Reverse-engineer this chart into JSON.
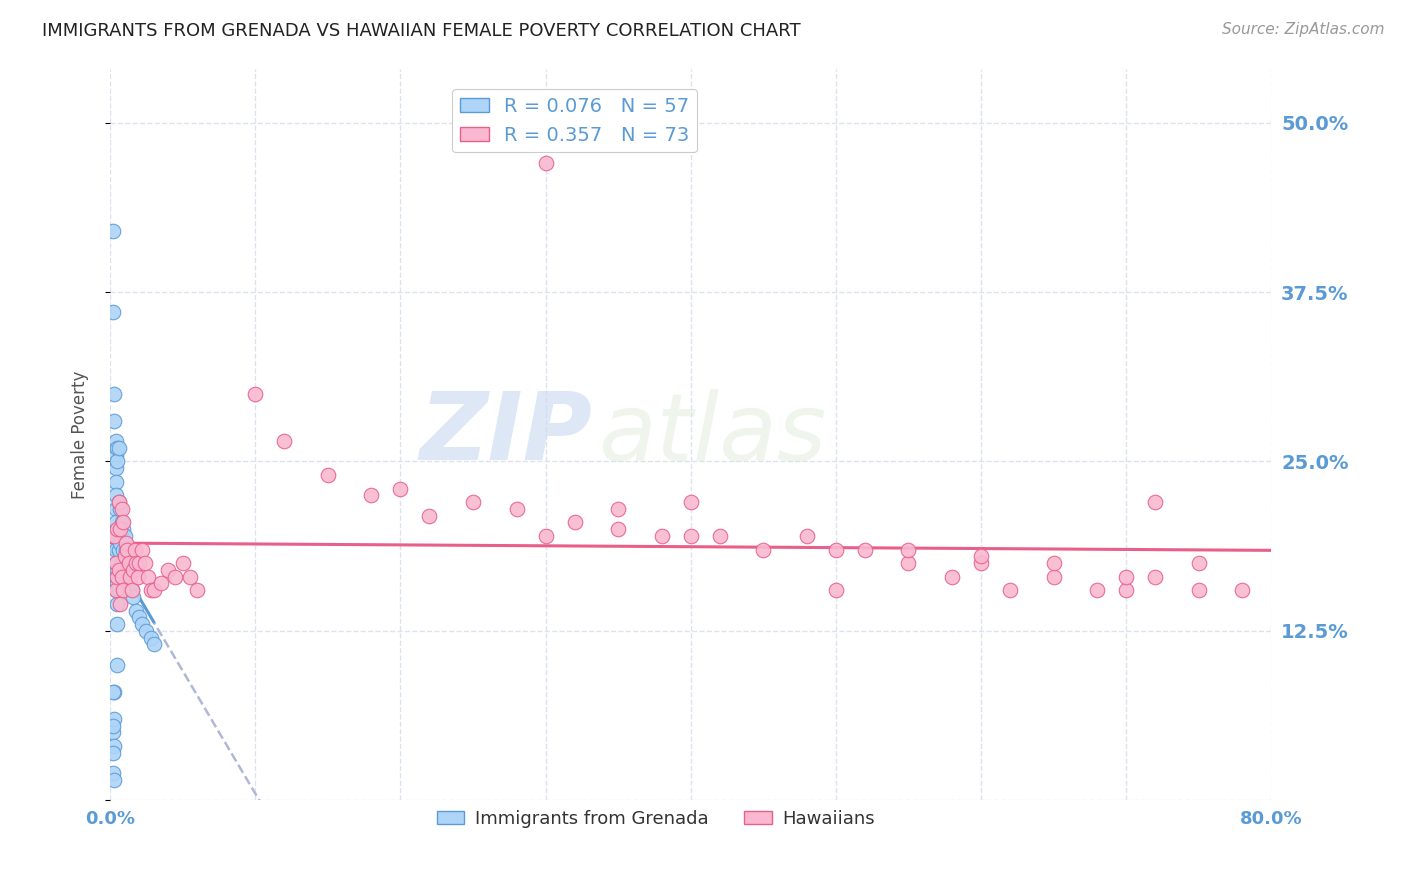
{
  "title": "IMMIGRANTS FROM GRENADA VS HAWAIIAN FEMALE POVERTY CORRELATION CHART",
  "source": "Source: ZipAtlas.com",
  "ylabel": "Female Poverty",
  "yticks": [
    0.0,
    0.125,
    0.25,
    0.375,
    0.5
  ],
  "ytick_labels": [
    "",
    "12.5%",
    "25.0%",
    "37.5%",
    "50.0%"
  ],
  "xlim": [
    0.0,
    0.8
  ],
  "ylim": [
    0.0,
    0.54
  ],
  "watermark_zip": "ZIP",
  "watermark_atlas": "atlas",
  "legend_series1_label": "R = 0.076   N = 57",
  "legend_series2_label": "R = 0.357   N = 73",
  "series1_face_color": "#aed4f7",
  "series2_face_color": "#f9b8d0",
  "series1_edge_color": "#5b9bd5",
  "series2_edge_color": "#e8608a",
  "series1_trend_solid_color": "#5b9bd5",
  "series2_trend_solid_color": "#e8608a",
  "series1_trend_dash_color": "#b0b8d8",
  "background_color": "#ffffff",
  "grid_color": "#dde3ee",
  "title_color": "#222222",
  "tick_label_color": "#5b9bd5",
  "series1_x": [
    0.002,
    0.002,
    0.002,
    0.002,
    0.003,
    0.003,
    0.003,
    0.003,
    0.003,
    0.004,
    0.004,
    0.004,
    0.004,
    0.004,
    0.004,
    0.004,
    0.004,
    0.004,
    0.004,
    0.004,
    0.004,
    0.005,
    0.005,
    0.005,
    0.005,
    0.005,
    0.005,
    0.005,
    0.006,
    0.006,
    0.006,
    0.006,
    0.007,
    0.007,
    0.008,
    0.008,
    0.009,
    0.009,
    0.009,
    0.01,
    0.01,
    0.011,
    0.012,
    0.013,
    0.014,
    0.015,
    0.016,
    0.018,
    0.02,
    0.022,
    0.025,
    0.028,
    0.03,
    0.002,
    0.002,
    0.002,
    0.003
  ],
  "series1_y": [
    0.42,
    0.36,
    0.05,
    0.02,
    0.3,
    0.28,
    0.08,
    0.06,
    0.04,
    0.265,
    0.255,
    0.245,
    0.235,
    0.225,
    0.215,
    0.205,
    0.195,
    0.185,
    0.175,
    0.165,
    0.155,
    0.26,
    0.25,
    0.17,
    0.16,
    0.145,
    0.13,
    0.1,
    0.26,
    0.22,
    0.185,
    0.155,
    0.215,
    0.19,
    0.205,
    0.175,
    0.2,
    0.185,
    0.165,
    0.195,
    0.17,
    0.185,
    0.175,
    0.165,
    0.16,
    0.155,
    0.15,
    0.14,
    0.135,
    0.13,
    0.125,
    0.12,
    0.115,
    0.08,
    0.055,
    0.035,
    0.015
  ],
  "series2_x": [
    0.003,
    0.004,
    0.004,
    0.005,
    0.005,
    0.006,
    0.006,
    0.007,
    0.007,
    0.008,
    0.008,
    0.009,
    0.009,
    0.01,
    0.011,
    0.012,
    0.013,
    0.014,
    0.015,
    0.016,
    0.017,
    0.018,
    0.019,
    0.02,
    0.022,
    0.024,
    0.026,
    0.028,
    0.03,
    0.035,
    0.04,
    0.045,
    0.05,
    0.055,
    0.06,
    0.1,
    0.12,
    0.15,
    0.18,
    0.2,
    0.22,
    0.25,
    0.28,
    0.3,
    0.32,
    0.35,
    0.38,
    0.4,
    0.42,
    0.45,
    0.48,
    0.5,
    0.52,
    0.55,
    0.58,
    0.6,
    0.62,
    0.65,
    0.68,
    0.7,
    0.72,
    0.75,
    0.78,
    0.3,
    0.35,
    0.4,
    0.5,
    0.55,
    0.6,
    0.65,
    0.7,
    0.72,
    0.75
  ],
  "series2_y": [
    0.195,
    0.175,
    0.155,
    0.2,
    0.165,
    0.22,
    0.17,
    0.2,
    0.145,
    0.215,
    0.165,
    0.205,
    0.155,
    0.18,
    0.19,
    0.185,
    0.175,
    0.165,
    0.155,
    0.17,
    0.185,
    0.175,
    0.165,
    0.175,
    0.185,
    0.175,
    0.165,
    0.155,
    0.155,
    0.16,
    0.17,
    0.165,
    0.175,
    0.165,
    0.155,
    0.3,
    0.265,
    0.24,
    0.225,
    0.23,
    0.21,
    0.22,
    0.215,
    0.195,
    0.205,
    0.2,
    0.195,
    0.22,
    0.195,
    0.185,
    0.195,
    0.185,
    0.185,
    0.175,
    0.165,
    0.175,
    0.155,
    0.165,
    0.155,
    0.155,
    0.165,
    0.155,
    0.155,
    0.47,
    0.215,
    0.195,
    0.155,
    0.185,
    0.18,
    0.175,
    0.165,
    0.22,
    0.175
  ]
}
